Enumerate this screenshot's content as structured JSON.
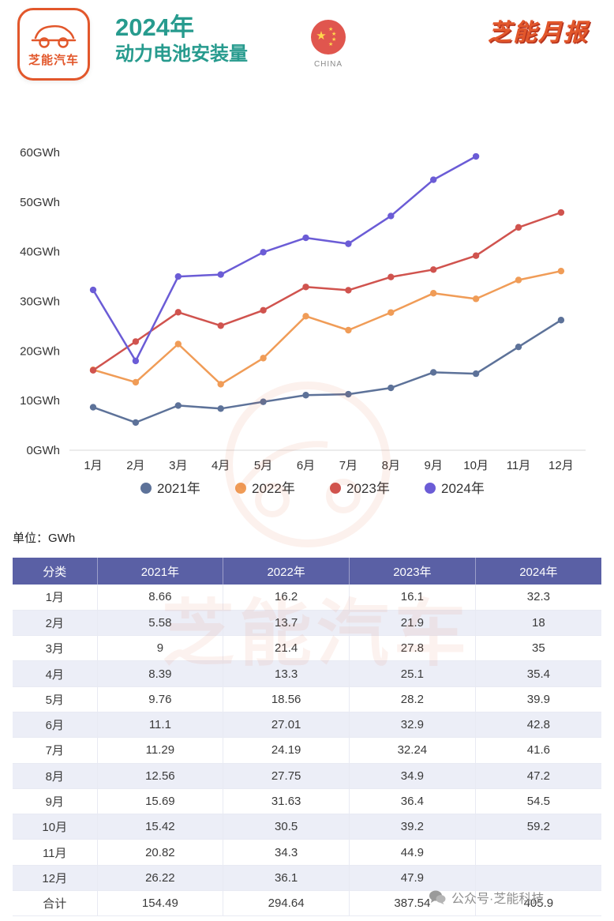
{
  "header": {
    "logo_text": "芝能汽车",
    "title_line1": "2024年",
    "title_line2": "动力电池安装量",
    "flag_label": "CHINA",
    "masthead": "芝能月报"
  },
  "unit_label": "单位：GWh",
  "watermark_brand": "芝能汽车",
  "footer_watermark": "公众号·芝能科技",
  "colors": {
    "title_teal": "#279b8e",
    "brand_orange": "#e2572b",
    "table_header_bg": "#5a60a5",
    "table_row_alt": "#eceef7"
  },
  "chart_data": {
    "type": "line",
    "title": "2024年动力电池安装量",
    "xlabel": "",
    "ylabel": "GWh",
    "ylim": [
      0,
      60
    ],
    "ytick_step": 10,
    "ytick_suffix": "GWh",
    "grid": false,
    "legend_position": "bottom",
    "x": [
      "1月",
      "2月",
      "3月",
      "4月",
      "5月",
      "6月",
      "7月",
      "8月",
      "9月",
      "10月",
      "11月",
      "12月"
    ],
    "series": [
      {
        "name": "2021年",
        "color": "#5d7299",
        "values": [
          8.66,
          5.58,
          9,
          8.39,
          9.76,
          11.1,
          11.29,
          12.56,
          15.69,
          15.42,
          20.82,
          26.22
        ]
      },
      {
        "name": "2022年",
        "color": "#f09c57",
        "values": [
          16.2,
          13.7,
          21.4,
          13.3,
          18.56,
          27.01,
          24.19,
          27.75,
          31.63,
          30.5,
          34.3,
          36.1
        ]
      },
      {
        "name": "2023年",
        "color": "#d0534e",
        "values": [
          16.1,
          21.9,
          27.8,
          25.1,
          28.2,
          32.9,
          32.24,
          34.9,
          36.4,
          39.2,
          44.9,
          47.9
        ]
      },
      {
        "name": "2024年",
        "color": "#6b5cd6",
        "values": [
          32.3,
          18,
          35,
          35.4,
          39.9,
          42.8,
          41.6,
          47.2,
          54.5,
          59.2,
          null,
          null
        ]
      }
    ]
  },
  "table": {
    "headers": [
      "分类",
      "2021年",
      "2022年",
      "2023年",
      "2024年"
    ],
    "rows": [
      [
        "1月",
        "8.66",
        "16.2",
        "16.1",
        "32.3"
      ],
      [
        "2月",
        "5.58",
        "13.7",
        "21.9",
        "18"
      ],
      [
        "3月",
        "9",
        "21.4",
        "27.8",
        "35"
      ],
      [
        "4月",
        "8.39",
        "13.3",
        "25.1",
        "35.4"
      ],
      [
        "5月",
        "9.76",
        "18.56",
        "28.2",
        "39.9"
      ],
      [
        "6月",
        "11.1",
        "27.01",
        "32.9",
        "42.8"
      ],
      [
        "7月",
        "11.29",
        "24.19",
        "32.24",
        "41.6"
      ],
      [
        "8月",
        "12.56",
        "27.75",
        "34.9",
        "47.2"
      ],
      [
        "9月",
        "15.69",
        "31.63",
        "36.4",
        "54.5"
      ],
      [
        "10月",
        "15.42",
        "30.5",
        "39.2",
        "59.2"
      ],
      [
        "11月",
        "20.82",
        "34.3",
        "44.9",
        ""
      ],
      [
        "12月",
        "26.22",
        "36.1",
        "47.9",
        ""
      ],
      [
        "合计",
        "154.49",
        "294.64",
        "387.54",
        "405.9"
      ]
    ]
  }
}
